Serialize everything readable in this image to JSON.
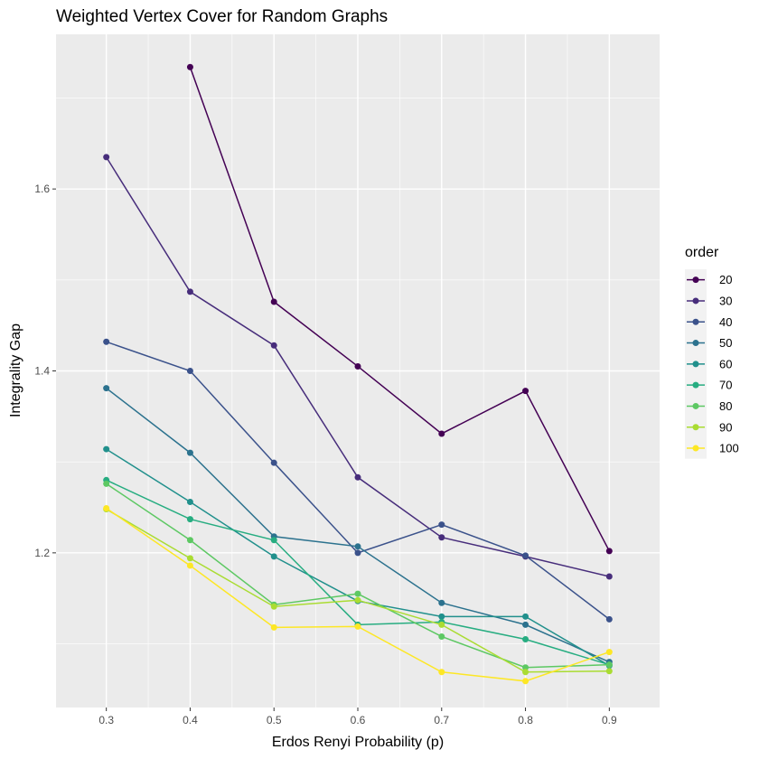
{
  "chart_data": {
    "type": "line",
    "title": "Weighted Vertex Cover for Random Graphs",
    "xlabel": "Erdos Renyi Probability (p)",
    "ylabel": "Integrality Gap",
    "x": [
      0.3,
      0.4,
      0.5,
      0.6,
      0.7,
      0.8,
      0.9
    ],
    "x_tick_labels": [
      "0.3",
      "0.4",
      "0.5",
      "0.6",
      "0.7",
      "0.8",
      "0.9"
    ],
    "xlim": [
      0.24,
      0.96
    ],
    "ylim": [
      1.03,
      1.77
    ],
    "y_ticks": [
      1.2,
      1.4,
      1.6
    ],
    "y_tick_labels": [
      "1.2",
      "1.4",
      "1.6"
    ],
    "y_minor_ticks": [
      1.1,
      1.3,
      1.5,
      1.7
    ],
    "grid": true,
    "legend": {
      "title": "order",
      "position": "right"
    },
    "series": [
      {
        "name": "20",
        "color": "#440154",
        "values": [
          null,
          1.734,
          1.476,
          1.405,
          1.331,
          1.378,
          1.202
        ]
      },
      {
        "name": "30",
        "color": "#472D7B",
        "values": [
          1.635,
          1.487,
          1.428,
          1.283,
          1.217,
          1.196,
          1.174
        ]
      },
      {
        "name": "40",
        "color": "#3B528B",
        "values": [
          1.432,
          1.4,
          1.299,
          1.2,
          1.231,
          1.197,
          1.127
        ]
      },
      {
        "name": "50",
        "color": "#2C728E",
        "values": [
          1.381,
          1.31,
          1.218,
          1.207,
          1.145,
          1.121,
          1.08
        ]
      },
      {
        "name": "60",
        "color": "#21908C",
        "values": [
          1.314,
          1.256,
          1.196,
          1.147,
          1.13,
          1.13,
          1.076
        ]
      },
      {
        "name": "70",
        "color": "#27AD81",
        "values": [
          1.28,
          1.237,
          1.214,
          1.121,
          1.124,
          1.105,
          1.077
        ]
      },
      {
        "name": "80",
        "color": "#5DC863",
        "values": [
          1.276,
          1.214,
          1.143,
          1.155,
          1.108,
          1.074,
          1.077
        ]
      },
      {
        "name": "90",
        "color": "#AADC32",
        "values": [
          1.248,
          1.194,
          1.141,
          1.148,
          1.121,
          1.069,
          1.07
        ]
      },
      {
        "name": "100",
        "color": "#FDE725",
        "values": [
          1.249,
          1.186,
          1.118,
          1.119,
          1.069,
          1.059,
          1.091
        ]
      }
    ]
  }
}
